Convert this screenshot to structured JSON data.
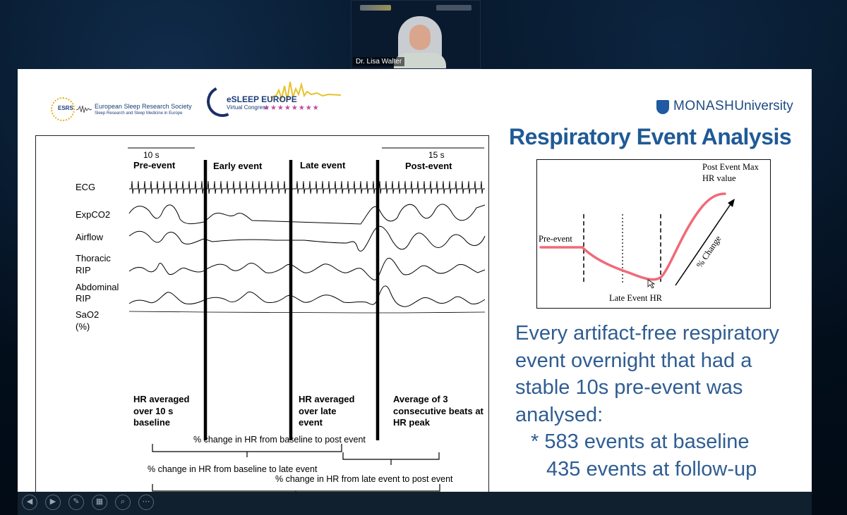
{
  "webcam": {
    "name_label": "Dr. Lisa Walter"
  },
  "logos": {
    "esrs_mark": "ESRS",
    "esrs_title": "European Sleep Research Society",
    "esrs_subtitle": "Sleep Research and Sleep Medicine in Europe",
    "esleep_brand": "eSLEEP EUROPE",
    "esleep_subtitle": "Virtual Congress",
    "monash_name": "MONASH",
    "monash_university": "University"
  },
  "slide": {
    "title": "Respiratory Event Analysis",
    "body_lines": [
      "Every artifact-free respiratory",
      "event overnight that had a",
      "stable 10s pre-event was",
      "analysed:",
      "* 583 events at baseline",
      "435 events at follow-up"
    ]
  },
  "figure": {
    "pre_duration": "10 s",
    "post_duration": "15 s",
    "phases": [
      "Pre-event",
      "Early event",
      "Late event",
      "Post-event"
    ],
    "channels": [
      "ECG",
      "ExpCO2",
      "Airflow",
      "Thoracic",
      "RIP",
      "Abdominal",
      "RIP",
      "SaO2",
      "(%)"
    ],
    "notes": {
      "pre": [
        "HR averaged",
        "over 10 s",
        "baseline"
      ],
      "late": [
        "HR averaged",
        "over late",
        "event"
      ],
      "post": [
        "Average of 3",
        "consecutive beats at",
        "HR peak"
      ]
    },
    "brackets": [
      "% change in HR from baseline to  late event",
      "% change in HR from baseline to  post event",
      "% change in HR from late event to post event"
    ]
  },
  "inset": {
    "pre_label": "Pre-event",
    "post_label_1": "Post Event Max",
    "post_label_2": "HR value",
    "late_label": "Late Event HR",
    "change_label": "% Change"
  },
  "toolbar": {
    "icons": [
      "prev-icon",
      "next-icon",
      "pen-icon",
      "slides-icon",
      "zoom-icon",
      "more-icon"
    ]
  }
}
